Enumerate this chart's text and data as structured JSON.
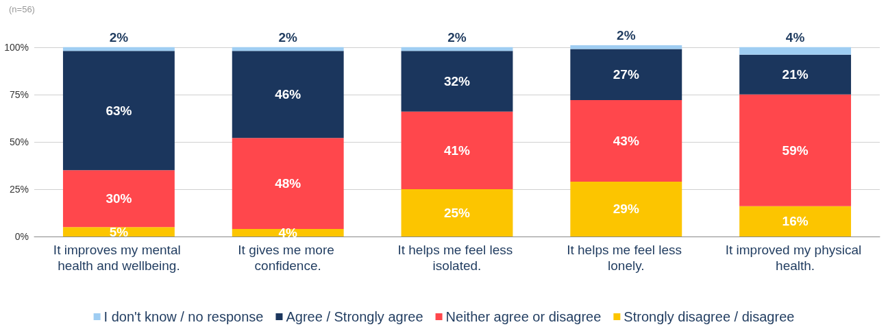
{
  "chart_data": {
    "type": "bar",
    "stacked": true,
    "subtitle": "(n=56)",
    "categories": [
      "It improves my mental health and wellbeing.",
      "It gives me more confidence.",
      "It helps me feel less isolated.",
      "It helps me feel less lonely.",
      "It improved my physical health."
    ],
    "series": [
      {
        "name": "Strongly disagree / disagree",
        "color": "#fcc500",
        "values": [
          5,
          4,
          25,
          29,
          16
        ],
        "value_labels": [
          "5%",
          "4%",
          "25%",
          "29%",
          "16%"
        ]
      },
      {
        "name": "Neither agree or disagree",
        "color": "#ff474c",
        "values": [
          30,
          48,
          41,
          43,
          59
        ],
        "value_labels": [
          "30%",
          "48%",
          "41%",
          "43%",
          "59%"
        ]
      },
      {
        "name": "Agree / Strongly agree",
        "color": "#1b365d",
        "values": [
          63,
          46,
          32,
          27,
          21
        ],
        "value_labels": [
          "63%",
          "46%",
          "32%",
          "27%",
          "21%"
        ]
      },
      {
        "name": "I don't know / no response",
        "color": "#9fcdf2",
        "values": [
          2,
          2,
          2,
          2,
          4
        ],
        "value_labels": [
          "2%",
          "2%",
          "2%",
          "2%",
          "4%"
        ]
      }
    ],
    "ylim": [
      0,
      101
    ],
    "yticks": [
      {
        "value": 0,
        "label": "0%"
      },
      {
        "value": 25,
        "label": "25%"
      },
      {
        "value": 50,
        "label": "50%"
      },
      {
        "value": 75,
        "label": "75%"
      },
      {
        "value": 100,
        "label": "100%"
      }
    ],
    "grid": "y",
    "legend": "bottom"
  }
}
